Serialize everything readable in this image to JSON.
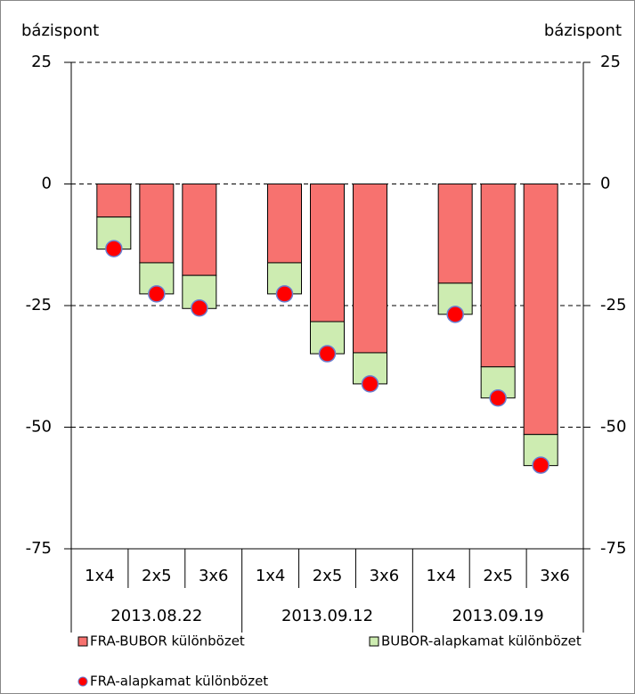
{
  "chart_data": {
    "type": "stacked-bar-with-dots",
    "y_label": "bázispont",
    "y2_label": "bázispont",
    "categories": [
      "1x4",
      "2x5",
      "3x6",
      "1x4",
      "2x5",
      "3x6",
      "1x4",
      "2x5",
      "3x6"
    ],
    "groups": [
      "2013.08.22",
      "2013.09.12",
      "2013.09.19"
    ],
    "series": [
      {
        "name": "FRA-BUBOR különbözet",
        "color": "#f7726f",
        "values": [
          -6.8,
          -16.2,
          -18.8,
          -16.2,
          -28.3,
          -34.7,
          -20.4,
          -37.6,
          -51.5
        ]
      },
      {
        "name": "BUBOR-alapkamat különbözet",
        "color": "#cdecb1",
        "values": [
          -6.6,
          -6.4,
          -6.8,
          -6.4,
          -6.6,
          -6.4,
          -6.4,
          -6.4,
          -6.4
        ]
      },
      {
        "name": "FRA-alapkamat különbözet",
        "color": "#ff0000",
        "marker": "dot",
        "values": [
          -13.3,
          -22.6,
          -25.5,
          -22.6,
          -34.9,
          -41.1,
          -26.8,
          -44,
          -57.8
        ]
      }
    ],
    "ylim": [
      -75,
      25
    ],
    "yticks": [
      25,
      0,
      -25,
      -50,
      -75
    ],
    "y2lim": [
      -75,
      25
    ],
    "y2ticks": [
      25,
      0,
      -25,
      -50,
      -75
    ],
    "grid": true
  }
}
